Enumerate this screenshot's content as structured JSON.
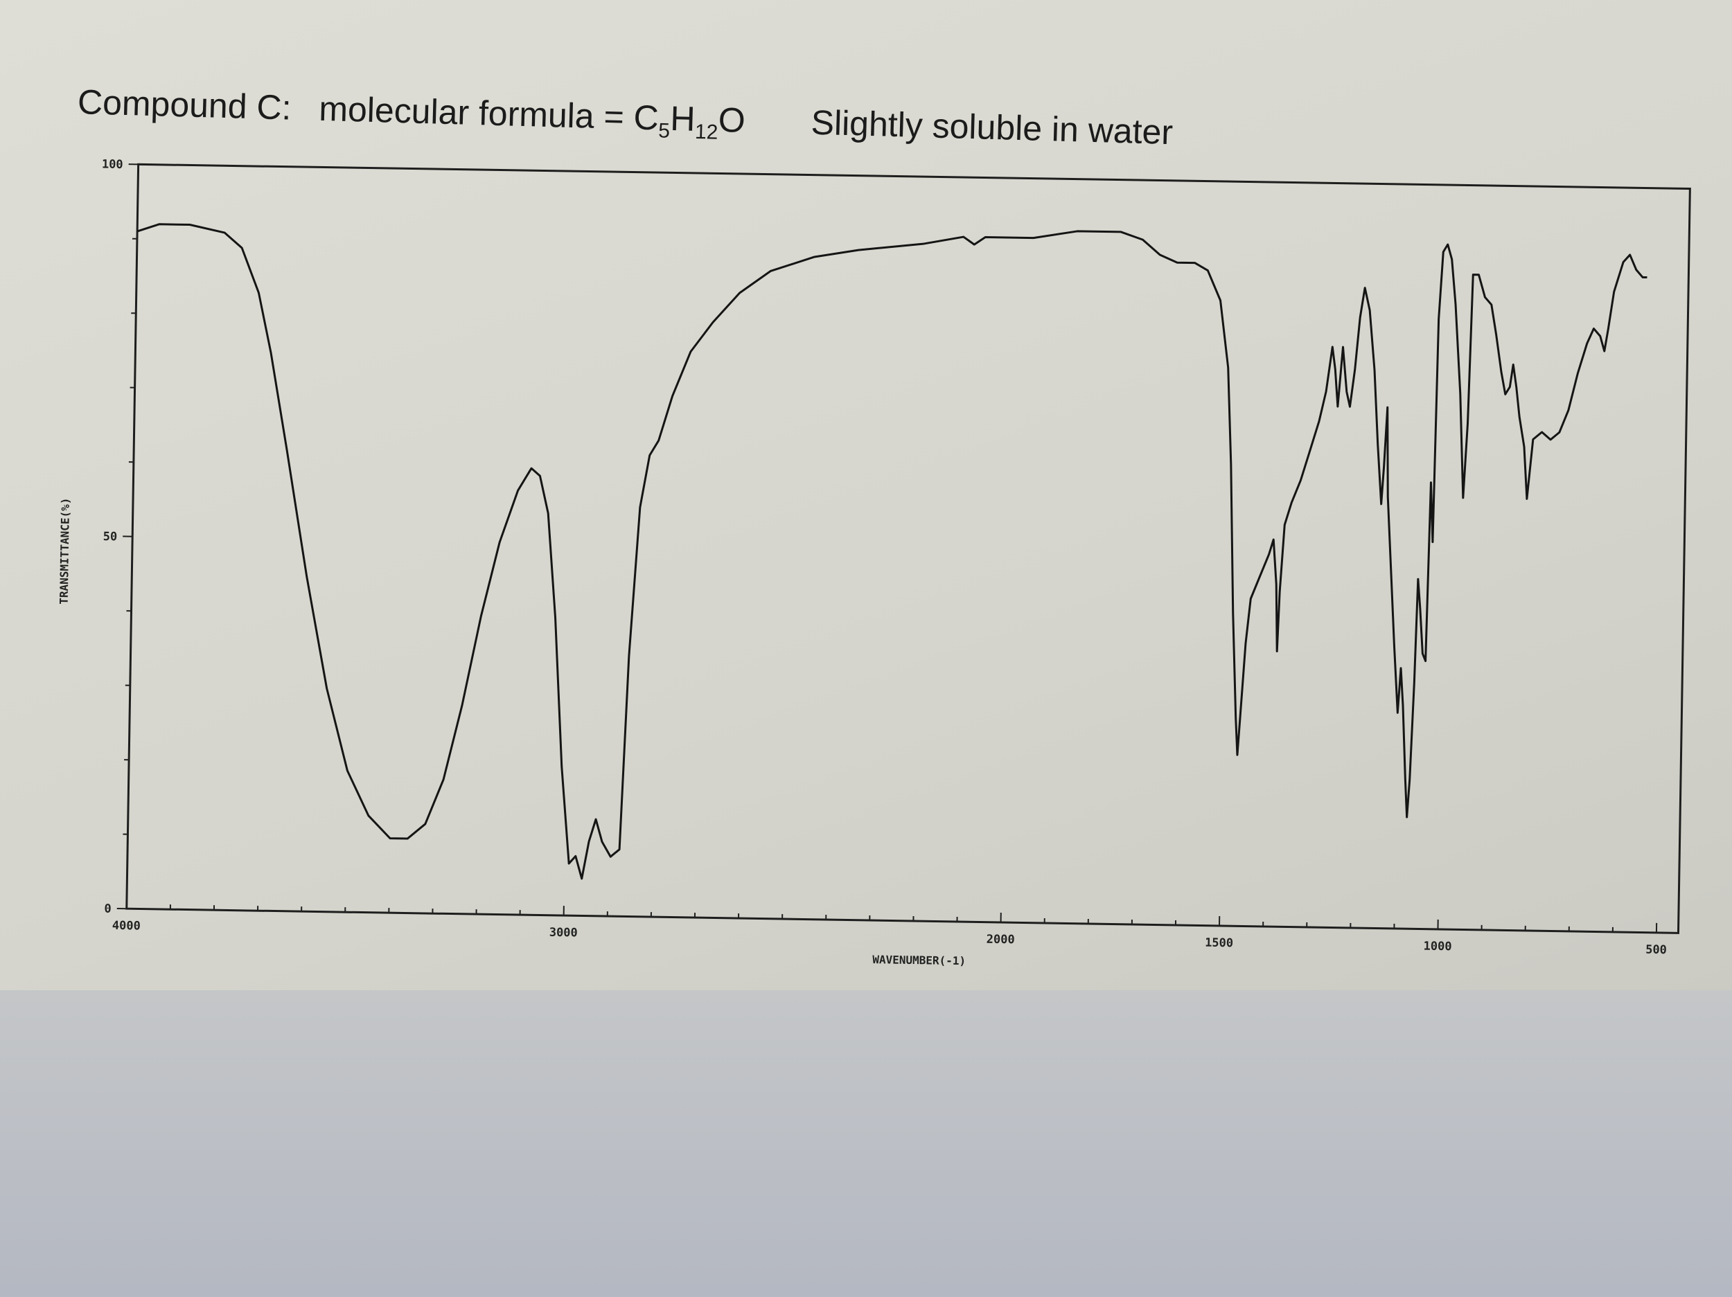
{
  "header": {
    "compound": "Compound C:",
    "formula_prefix": "molecular formula = C",
    "formula_sub1": "5",
    "formula_mid": "H",
    "formula_sub2": "12",
    "formula_suffix": "O",
    "solubility": "Slightly soluble in water"
  },
  "chart_data": {
    "type": "line",
    "title": "",
    "xlabel": "WAVENUMBER(-1)",
    "ylabel": "TRANSMITTANCE(%)",
    "xlim": [
      4000,
      450
    ],
    "ylim": [
      0,
      100
    ],
    "x_reversed": true,
    "grid": false,
    "x_ticks": [
      {
        "value": 4000,
        "label": "4000"
      },
      {
        "value": 3000,
        "label": "3000"
      },
      {
        "value": 2000,
        "label": "2000"
      },
      {
        "value": 1500,
        "label": "1500"
      },
      {
        "value": 1000,
        "label": "1000"
      },
      {
        "value": 500,
        "label": "500"
      }
    ],
    "y_ticks": [
      {
        "value": 0,
        "label": "0"
      },
      {
        "value": 50,
        "label": "50"
      },
      {
        "value": 100,
        "label": "100"
      }
    ],
    "series": [
      {
        "points": [
          [
            4000,
            91
          ],
          [
            3950,
            92
          ],
          [
            3880,
            92
          ],
          [
            3800,
            91
          ],
          [
            3760,
            89
          ],
          [
            3720,
            83
          ],
          [
            3690,
            75
          ],
          [
            3650,
            62
          ],
          [
            3600,
            45
          ],
          [
            3550,
            30
          ],
          [
            3500,
            19
          ],
          [
            3450,
            13
          ],
          [
            3400,
            10
          ],
          [
            3360,
            10
          ],
          [
            3320,
            12
          ],
          [
            3280,
            18
          ],
          [
            3240,
            28
          ],
          [
            3200,
            40
          ],
          [
            3160,
            50
          ],
          [
            3120,
            57
          ],
          [
            3090,
            60
          ],
          [
            3070,
            59
          ],
          [
            3050,
            54
          ],
          [
            3030,
            40
          ],
          [
            3010,
            20
          ],
          [
            2990,
            7
          ],
          [
            2975,
            8
          ],
          [
            2960,
            5
          ],
          [
            2945,
            10
          ],
          [
            2930,
            13
          ],
          [
            2915,
            10
          ],
          [
            2895,
            8
          ],
          [
            2875,
            9
          ],
          [
            2860,
            35
          ],
          [
            2840,
            55
          ],
          [
            2820,
            62
          ],
          [
            2800,
            64
          ],
          [
            2770,
            70
          ],
          [
            2730,
            76
          ],
          [
            2680,
            80
          ],
          [
            2620,
            84
          ],
          [
            2550,
            87
          ],
          [
            2450,
            89
          ],
          [
            2350,
            90
          ],
          [
            2200,
            91
          ],
          [
            2110,
            92
          ],
          [
            2085,
            91
          ],
          [
            2060,
            92
          ],
          [
            1950,
            92
          ],
          [
            1850,
            93
          ],
          [
            1750,
            93
          ],
          [
            1700,
            92
          ],
          [
            1660,
            90
          ],
          [
            1620,
            89
          ],
          [
            1580,
            89
          ],
          [
            1550,
            88
          ],
          [
            1520,
            84
          ],
          [
            1500,
            75
          ],
          [
            1490,
            62
          ],
          [
            1480,
            42
          ],
          [
            1470,
            28
          ],
          [
            1465,
            23
          ],
          [
            1460,
            28
          ],
          [
            1450,
            38
          ],
          [
            1440,
            44
          ],
          [
            1420,
            47
          ],
          [
            1400,
            50
          ],
          [
            1390,
            52
          ],
          [
            1382,
            46
          ],
          [
            1378,
            37
          ],
          [
            1374,
            45
          ],
          [
            1365,
            54
          ],
          [
            1350,
            57
          ],
          [
            1330,
            60
          ],
          [
            1310,
            64
          ],
          [
            1290,
            68
          ],
          [
            1275,
            72
          ],
          [
            1262,
            78
          ],
          [
            1255,
            75
          ],
          [
            1248,
            70
          ],
          [
            1238,
            78
          ],
          [
            1228,
            72
          ],
          [
            1220,
            70
          ],
          [
            1210,
            75
          ],
          [
            1200,
            82
          ],
          [
            1190,
            86
          ],
          [
            1178,
            83
          ],
          [
            1165,
            75
          ],
          [
            1155,
            65
          ],
          [
            1145,
            57
          ],
          [
            1140,
            62
          ],
          [
            1134,
            70
          ],
          [
            1130,
            58
          ],
          [
            1120,
            48
          ],
          [
            1110,
            38
          ],
          [
            1100,
            29
          ],
          [
            1094,
            35
          ],
          [
            1088,
            30
          ],
          [
            1080,
            20
          ],
          [
            1075,
            15
          ],
          [
            1070,
            20
          ],
          [
            1063,
            33
          ],
          [
            1058,
            47
          ],
          [
            1052,
            43
          ],
          [
            1045,
            37
          ],
          [
            1038,
            36
          ],
          [
            1032,
            60
          ],
          [
            1026,
            52
          ],
          [
            1020,
            82
          ],
          [
            1012,
            91
          ],
          [
            1002,
            92
          ],
          [
            992,
            90
          ],
          [
            982,
            84
          ],
          [
            975,
            78
          ],
          [
            968,
            72
          ],
          [
            958,
            58
          ],
          [
            950,
            68
          ],
          [
            943,
            88
          ],
          [
            930,
            88
          ],
          [
            915,
            85
          ],
          [
            900,
            84
          ],
          [
            888,
            80
          ],
          [
            875,
            75
          ],
          [
            865,
            72
          ],
          [
            855,
            73
          ],
          [
            848,
            76
          ],
          [
            840,
            73
          ],
          [
            832,
            69
          ],
          [
            820,
            65
          ],
          [
            812,
            58
          ],
          [
            800,
            66
          ],
          [
            780,
            67
          ],
          [
            760,
            66
          ],
          [
            740,
            67
          ],
          [
            720,
            70
          ],
          [
            700,
            75
          ],
          [
            680,
            79
          ],
          [
            665,
            81
          ],
          [
            650,
            80
          ],
          [
            640,
            78
          ],
          [
            632,
            81
          ],
          [
            620,
            86
          ],
          [
            600,
            90
          ],
          [
            585,
            91
          ],
          [
            570,
            89
          ],
          [
            555,
            88
          ],
          [
            545,
            88
          ]
        ]
      }
    ]
  }
}
